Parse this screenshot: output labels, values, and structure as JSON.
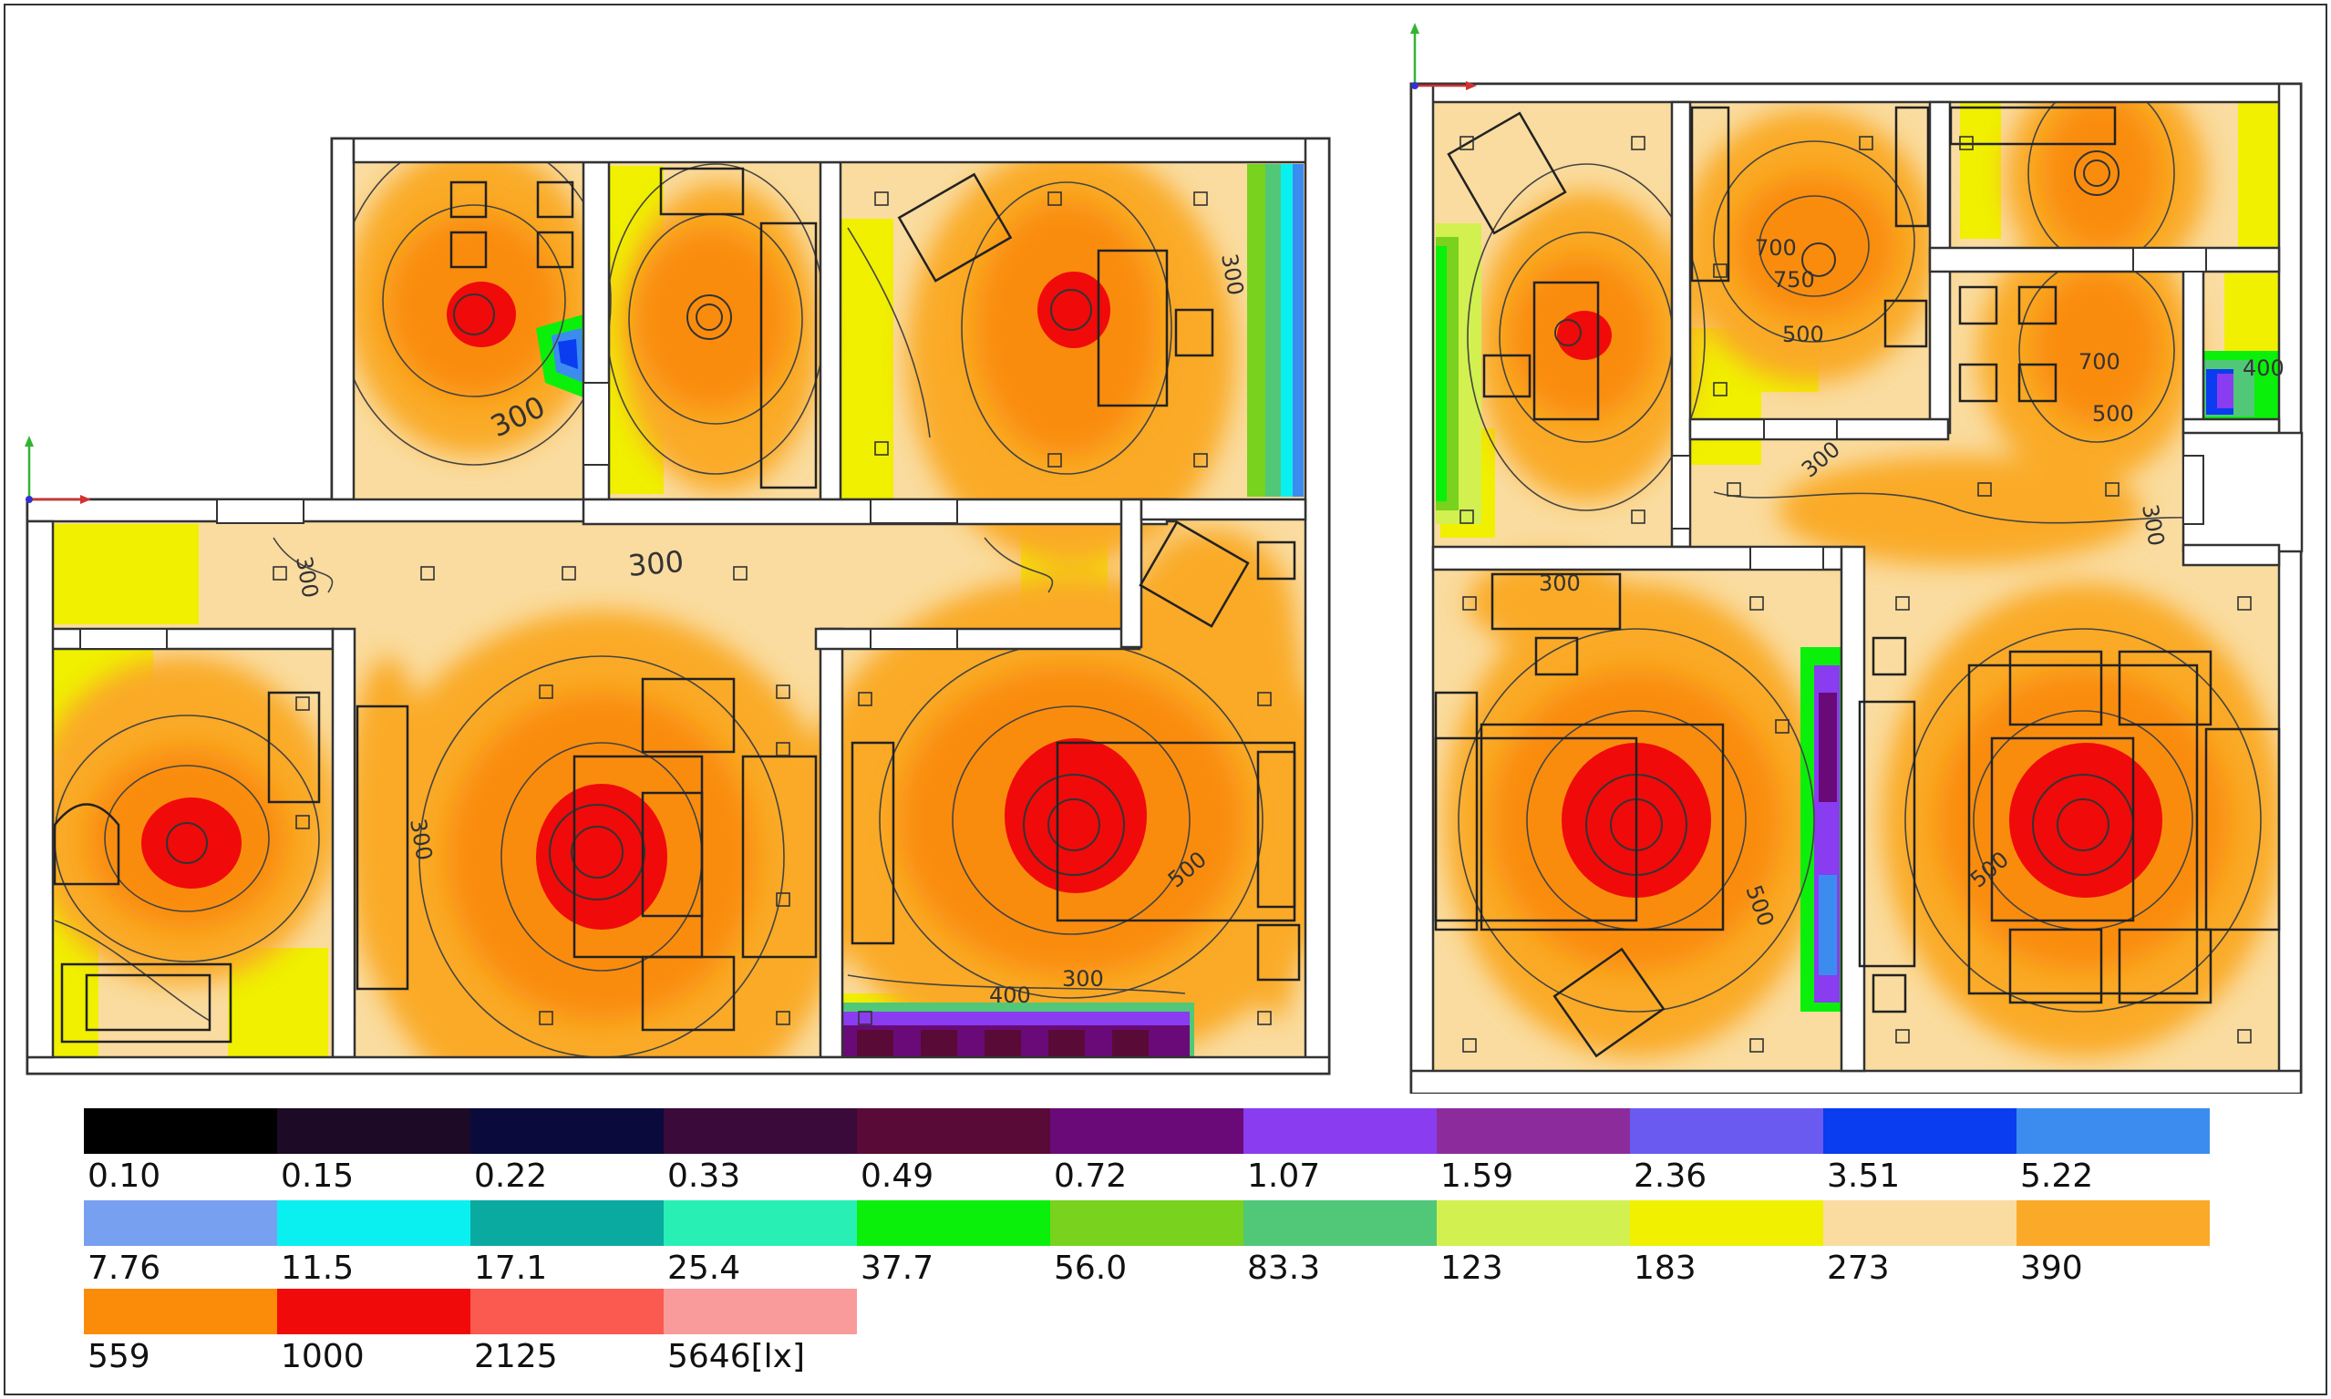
{
  "contour_labels": {
    "l_bath_300": "300",
    "l_hall_300a": "300",
    "l_hall_300b": "300",
    "l_tv_300": "300",
    "l_bed_300": "300",
    "l_bed_400": "400",
    "l_bed_500": "500",
    "l_liv_300": "300",
    "r_k_700": "700",
    "r_k_750": "750",
    "r_k_500": "500",
    "r_b_700": "700",
    "r_b_500": "500",
    "r_b_400": "400",
    "r_c_300": "300",
    "r_c_300b": "300",
    "r_s_300": "300",
    "r_bed_500": "500",
    "r_liv_500": "500"
  },
  "legend": {
    "rows": [
      [
        {
          "label": "0.10",
          "color": "#000000"
        },
        {
          "label": "0.15",
          "color": "#1c0a26"
        },
        {
          "label": "0.22",
          "color": "#0a0a3c"
        },
        {
          "label": "0.33",
          "color": "#3a0a3a"
        },
        {
          "label": "0.49",
          "color": "#5a0a36"
        },
        {
          "label": "0.72",
          "color": "#6a0a78"
        },
        {
          "label": "1.07",
          "color": "#8a3cf0"
        },
        {
          "label": "1.59",
          "color": "#8c2c9c"
        },
        {
          "label": "2.36",
          "color": "#6a5af0"
        },
        {
          "label": "3.51",
          "color": "#0a3cf0"
        },
        {
          "label": "5.22",
          "color": "#3c8cf0"
        }
      ],
      [
        {
          "label": "7.76",
          "color": "#78a0f0"
        },
        {
          "label": "11.5",
          "color": "#0af0f0"
        },
        {
          "label": "17.1",
          "color": "#0aaaa0"
        },
        {
          "label": "25.4",
          "color": "#28f0b4"
        },
        {
          "label": "37.7",
          "color": "#0af00a"
        },
        {
          "label": "56.0",
          "color": "#78d21e"
        },
        {
          "label": "83.3",
          "color": "#50c878"
        },
        {
          "label": "123",
          "color": "#d2f050"
        },
        {
          "label": "183",
          "color": "#f0f000"
        },
        {
          "label": "273",
          "color": "#fadca0"
        },
        {
          "label": "390",
          "color": "#faaa28"
        }
      ],
      [
        {
          "label": "559",
          "color": "#fa8c0a"
        },
        {
          "label": "1000",
          "color": "#f00a0a"
        },
        {
          "label": "2125",
          "color": "#fa5a50"
        },
        {
          "label": "5646[lx]",
          "color": "#fa9b9b"
        }
      ]
    ]
  },
  "colors": {
    "background": "#ffffff",
    "wall": "#333333",
    "level_273": "#fadca0",
    "level_390": "#faaa28",
    "level_559": "#fa8c0a",
    "level_1000": "#f00a0a",
    "level_183": "#f0f000",
    "level_37_7": "#0af00a",
    "level_83_3": "#50c878",
    "level_3_51": "#0a3cf0",
    "level_1_07": "#8a3cf0",
    "level_0_72": "#6a0a78",
    "axis_x": "#d23232",
    "axis_y": "#32b432"
  },
  "icons": {
    "axis_marker": "xy-axis-icon",
    "luminaire": "ceiling-light-icon"
  }
}
